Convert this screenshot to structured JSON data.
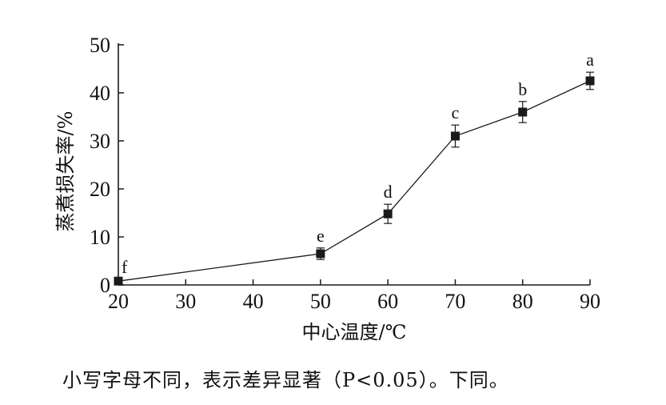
{
  "chart_data": {
    "type": "line",
    "xlabel": "中心温度/℃",
    "ylabel": "蒸煮损失率/%",
    "xlim": [
      20,
      90
    ],
    "ylim": [
      0,
      50
    ],
    "x_ticks": [
      20,
      30,
      40,
      50,
      60,
      70,
      80,
      90
    ],
    "y_ticks": [
      0,
      10,
      20,
      30,
      40,
      50
    ],
    "grid": false,
    "marker": "square",
    "color": "#1a1a1a",
    "series": [
      {
        "points": [
          {
            "x": 20,
            "y": 0.8,
            "err": 0.3,
            "label": "f"
          },
          {
            "x": 50,
            "y": 6.5,
            "err": 1.2,
            "label": "e"
          },
          {
            "x": 60,
            "y": 14.8,
            "err": 2.0,
            "label": "d"
          },
          {
            "x": 70,
            "y": 31.0,
            "err": 2.3,
            "label": "c"
          },
          {
            "x": 80,
            "y": 36.0,
            "err": 2.2,
            "label": "b"
          },
          {
            "x": 90,
            "y": 42.5,
            "err": 1.8,
            "label": "a"
          }
        ]
      }
    ]
  },
  "caption": "小写字母不同，表示差异显著（P<0.05）。下同。"
}
